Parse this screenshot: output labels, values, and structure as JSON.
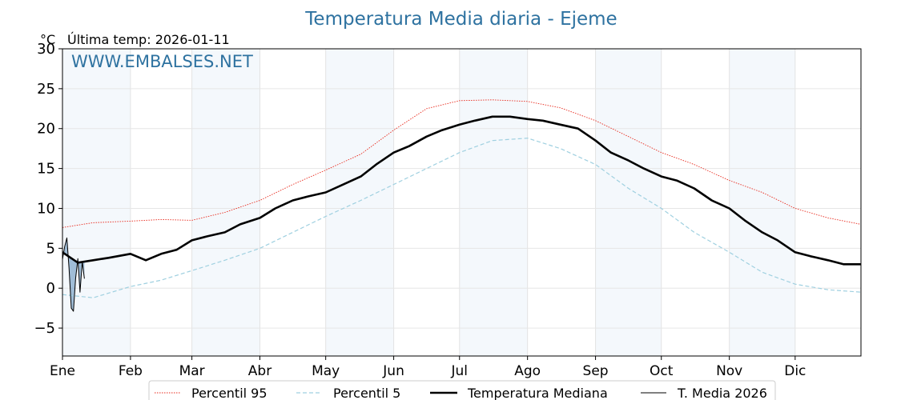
{
  "chart_data": {
    "type": "line",
    "title": "Temperatura Media diaria - Ejeme",
    "unit_label": "°C",
    "last_temp_label": "Última temp: 2026-01-11",
    "watermark": "WWW.EMBALSES.NET",
    "x_unit": "day of year",
    "xlim": [
      1,
      365
    ],
    "ylim": [
      -8.5,
      30
    ],
    "y_ticks": [
      -5,
      0,
      5,
      10,
      15,
      20,
      25,
      30
    ],
    "y_tick_labels": [
      "−5",
      "0",
      "5",
      "10",
      "15",
      "20",
      "25",
      "30"
    ],
    "month_ticks": [
      {
        "label": "Ene",
        "day": 1
      },
      {
        "label": "Feb",
        "day": 32
      },
      {
        "label": "Mar",
        "day": 60
      },
      {
        "label": "Abr",
        "day": 91
      },
      {
        "label": "May",
        "day": 121
      },
      {
        "label": "Jun",
        "day": 152
      },
      {
        "label": "Jul",
        "day": 182
      },
      {
        "label": "Ago",
        "day": 213
      },
      {
        "label": "Sep",
        "day": 244
      },
      {
        "label": "Oct",
        "day": 274
      },
      {
        "label": "Nov",
        "day": 305
      },
      {
        "label": "Dic",
        "day": 335
      }
    ],
    "shaded_months": [
      "Ene",
      "Mar",
      "May",
      "Jul",
      "Sep",
      "Nov"
    ],
    "grid": true,
    "legend_position": "bottom-center",
    "series": [
      {
        "name": "Percentil 95",
        "color": "#e8291c",
        "style": "dotted",
        "x": [
          1,
          15,
          32,
          46,
          60,
          75,
          91,
          106,
          121,
          137,
          152,
          167,
          182,
          197,
          213,
          228,
          244,
          259,
          274,
          289,
          305,
          320,
          335,
          350,
          365
        ],
        "values": [
          7.6,
          8.2,
          8.4,
          8.6,
          8.5,
          9.5,
          11.0,
          13.0,
          14.8,
          16.8,
          19.8,
          22.5,
          23.5,
          23.6,
          23.4,
          22.6,
          21.0,
          19.0,
          17.0,
          15.5,
          13.5,
          12.0,
          10.0,
          8.8,
          8.0
        ]
      },
      {
        "name": "Percentil 5",
        "color": "#9fd0e0",
        "style": "dashed",
        "x": [
          1,
          15,
          32,
          46,
          60,
          75,
          91,
          106,
          121,
          137,
          152,
          167,
          182,
          197,
          213,
          228,
          244,
          259,
          274,
          289,
          305,
          320,
          335,
          350,
          365
        ],
        "values": [
          -0.8,
          -1.2,
          0.2,
          1.0,
          2.2,
          3.5,
          5.0,
          7.0,
          9.0,
          11.0,
          13.0,
          15.0,
          17.0,
          18.5,
          18.8,
          17.5,
          15.5,
          12.5,
          10.0,
          7.0,
          4.5,
          2.0,
          0.5,
          -0.2,
          -0.5
        ]
      },
      {
        "name": "Temperatura Mediana",
        "color": "#000000",
        "style": "thick",
        "x": [
          1,
          8,
          15,
          22,
          32,
          39,
          46,
          53,
          60,
          67,
          75,
          82,
          91,
          98,
          106,
          113,
          121,
          129,
          137,
          144,
          152,
          159,
          167,
          174,
          182,
          189,
          197,
          205,
          213,
          220,
          228,
          236,
          244,
          251,
          259,
          266,
          274,
          281,
          289,
          297,
          305,
          312,
          320,
          327,
          335,
          342,
          350,
          357,
          365
        ],
        "values": [
          4.5,
          3.2,
          3.5,
          3.8,
          4.3,
          3.5,
          4.3,
          4.8,
          6.0,
          6.5,
          7.0,
          8.0,
          8.8,
          10.0,
          11.0,
          11.5,
          12.0,
          13.0,
          14.0,
          15.5,
          17.0,
          17.8,
          19.0,
          19.8,
          20.5,
          21.0,
          21.5,
          21.5,
          21.2,
          21.0,
          20.5,
          20.0,
          18.5,
          17.0,
          16.0,
          15.0,
          14.0,
          13.5,
          12.5,
          11.0,
          10.0,
          8.5,
          7.0,
          6.0,
          4.5,
          4.0,
          3.5,
          3.0,
          3.0
        ]
      },
      {
        "name": "T. Media 2026",
        "color": "#000000",
        "style": "thin",
        "x": [
          1,
          2,
          3,
          4,
          5,
          6,
          7,
          8,
          9,
          10,
          11
        ],
        "values": [
          3.6,
          5.2,
          6.3,
          2.5,
          -2.5,
          -2.9,
          1.2,
          3.7,
          -0.5,
          3.3,
          1.2
        ]
      }
    ]
  }
}
